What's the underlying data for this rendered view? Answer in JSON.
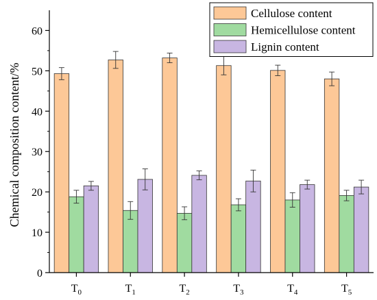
{
  "chart_data": {
    "type": "bar",
    "categories": [
      {
        "main": "T",
        "sub": "0"
      },
      {
        "main": "T",
        "sub": "1"
      },
      {
        "main": "T",
        "sub": "2"
      },
      {
        "main": "T",
        "sub": "3"
      },
      {
        "main": "T",
        "sub": "4"
      },
      {
        "main": "T",
        "sub": "5"
      }
    ],
    "series": [
      {
        "name": "Cellulose content",
        "color": "#fdc897",
        "values": [
          49.3,
          52.7,
          53.2,
          51.3,
          50.1,
          48.0
        ],
        "errors": [
          1.5,
          2.1,
          1.2,
          2.3,
          1.3,
          1.7
        ]
      },
      {
        "name": "Hemicellulose content",
        "color": "#a0dba0",
        "values": [
          18.8,
          15.4,
          14.7,
          16.8,
          18.0,
          19.1
        ],
        "errors": [
          1.6,
          2.2,
          1.6,
          1.5,
          1.8,
          1.3
        ]
      },
      {
        "name": "Lignin content",
        "color": "#c8b6e2",
        "values": [
          21.5,
          23.1,
          24.1,
          22.7,
          21.8,
          21.2
        ],
        "errors": [
          1.1,
          2.6,
          1.1,
          2.7,
          1.1,
          1.7
        ]
      }
    ],
    "ylabel": "Chemical composition content/%",
    "xlabel": "",
    "ylim": [
      0,
      65
    ],
    "yticks": [
      0,
      10,
      20,
      30,
      40,
      50,
      60
    ],
    "grid": false,
    "legend_position": "top-right"
  }
}
